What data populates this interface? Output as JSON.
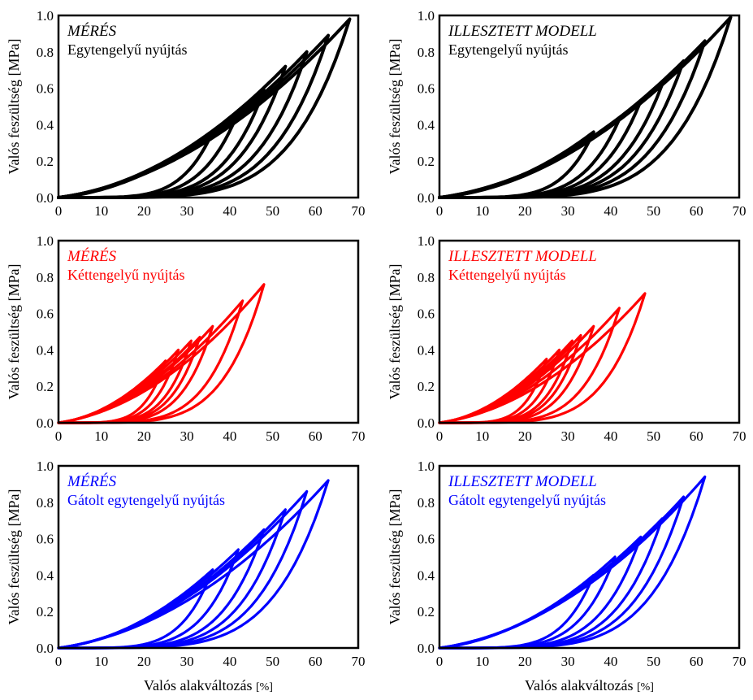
{
  "chart_data": [
    {
      "type": "line",
      "title": "MÉRÉS",
      "subtitle": "Egytengelyű nyújtás",
      "color": "#000000",
      "ylabel": "Valós feszültség [MPa]",
      "xlabel": "",
      "xlim": [
        0,
        70
      ],
      "ylim": [
        0,
        1.0
      ],
      "xticks": [
        "0",
        "10",
        "20",
        "30",
        "40",
        "50",
        "60",
        "70"
      ],
      "yticks": [
        "0.0",
        "0.2",
        "0.4",
        "0.6",
        "0.8",
        "1.0"
      ],
      "grid": false,
      "loops": [
        {
          "x_max": 36,
          "y_max": 0.36
        },
        {
          "x_max": 42,
          "y_max": 0.47
        },
        {
          "x_max": 48,
          "y_max": 0.59
        },
        {
          "x_max": 53,
          "y_max": 0.72
        },
        {
          "x_max": 58,
          "y_max": 0.8
        },
        {
          "x_max": 63,
          "y_max": 0.89
        },
        {
          "x_max": 68,
          "y_max": 0.98
        }
      ]
    },
    {
      "type": "line",
      "title": "ILLESZTETT MODELL",
      "subtitle": "Egytengelyű nyújtás",
      "color": "#000000",
      "ylabel": "Valós feszültség [MPa]",
      "xlabel": "",
      "xlim": [
        0,
        70
      ],
      "ylim": [
        0,
        1.0
      ],
      "xticks": [
        "0",
        "10",
        "20",
        "30",
        "40",
        "50",
        "60",
        "70"
      ],
      "yticks": [
        "0.0",
        "0.2",
        "0.4",
        "0.6",
        "0.8",
        "1.0"
      ],
      "grid": false,
      "loops": [
        {
          "x_max": 36,
          "y_max": 0.36
        },
        {
          "x_max": 42,
          "y_max": 0.43
        },
        {
          "x_max": 47,
          "y_max": 0.53
        },
        {
          "x_max": 52,
          "y_max": 0.62
        },
        {
          "x_max": 57,
          "y_max": 0.75
        },
        {
          "x_max": 62,
          "y_max": 0.86
        },
        {
          "x_max": 68,
          "y_max": 0.99
        }
      ]
    },
    {
      "type": "line",
      "title": "MÉRÉS",
      "subtitle": "Kéttengelyű nyújtás",
      "color": "#ff0000",
      "ylabel": "Valós feszültség [MPa]",
      "xlabel": "",
      "xlim": [
        0,
        70
      ],
      "ylim": [
        0,
        1.0
      ],
      "xticks": [
        "0",
        "10",
        "20",
        "30",
        "40",
        "50",
        "60",
        "70"
      ],
      "yticks": [
        "0.0",
        "0.2",
        "0.4",
        "0.6",
        "0.8",
        "1.0"
      ],
      "grid": false,
      "loops": [
        {
          "x_max": 25,
          "y_max": 0.34
        },
        {
          "x_max": 28,
          "y_max": 0.4
        },
        {
          "x_max": 31,
          "y_max": 0.45
        },
        {
          "x_max": 33,
          "y_max": 0.47
        },
        {
          "x_max": 36,
          "y_max": 0.53
        },
        {
          "x_max": 43,
          "y_max": 0.67
        },
        {
          "x_max": 48,
          "y_max": 0.76
        }
      ]
    },
    {
      "type": "line",
      "title": "ILLESZTETT MODELL",
      "subtitle": "Kéttengelyű nyújtás",
      "color": "#ff0000",
      "ylabel": "Valós feszültség [MPa]",
      "xlabel": "",
      "xlim": [
        0,
        70
      ],
      "ylim": [
        0,
        1.0
      ],
      "xticks": [
        "0",
        "10",
        "20",
        "30",
        "40",
        "50",
        "60",
        "70"
      ],
      "yticks": [
        "0.0",
        "0.2",
        "0.4",
        "0.6",
        "0.8",
        "1.0"
      ],
      "grid": false,
      "loops": [
        {
          "x_max": 25,
          "y_max": 0.35
        },
        {
          "x_max": 28,
          "y_max": 0.4
        },
        {
          "x_max": 31,
          "y_max": 0.45
        },
        {
          "x_max": 33,
          "y_max": 0.48
        },
        {
          "x_max": 36,
          "y_max": 0.53
        },
        {
          "x_max": 42,
          "y_max": 0.63
        },
        {
          "x_max": 48,
          "y_max": 0.71
        }
      ]
    },
    {
      "type": "line",
      "title": "MÉRÉS",
      "subtitle": "Gátolt egytengelyű nyújtás",
      "color": "#0000ff",
      "ylabel": "Valós feszültség [MPa]",
      "xlabel": "Valós alakváltozás [%]",
      "xlim": [
        0,
        70
      ],
      "ylim": [
        0,
        1.0
      ],
      "xticks": [
        "0",
        "10",
        "20",
        "30",
        "40",
        "50",
        "60",
        "70"
      ],
      "yticks": [
        "0.0",
        "0.2",
        "0.4",
        "0.6",
        "0.8",
        "1.0"
      ],
      "grid": false,
      "loops": [
        {
          "x_max": 36,
          "y_max": 0.43
        },
        {
          "x_max": 42,
          "y_max": 0.54
        },
        {
          "x_max": 48,
          "y_max": 0.65
        },
        {
          "x_max": 53,
          "y_max": 0.76
        },
        {
          "x_max": 58,
          "y_max": 0.86
        },
        {
          "x_max": 63,
          "y_max": 0.92
        }
      ]
    },
    {
      "type": "line",
      "title": "ILLESZTETT MODELL",
      "subtitle": "Gátolt egytengelyű nyújtás",
      "color": "#0000ff",
      "ylabel": "Valós feszültség [MPa]",
      "xlabel": "Valós alakváltozás [%]",
      "xlim": [
        0,
        70
      ],
      "ylim": [
        0,
        1.0
      ],
      "xticks": [
        "0",
        "10",
        "20",
        "30",
        "40",
        "50",
        "60",
        "70"
      ],
      "yticks": [
        "0.0",
        "0.2",
        "0.4",
        "0.6",
        "0.8",
        "1.0"
      ],
      "grid": false,
      "loops": [
        {
          "x_max": 36,
          "y_max": 0.4
        },
        {
          "x_max": 41,
          "y_max": 0.5
        },
        {
          "x_max": 47,
          "y_max": 0.61
        },
        {
          "x_max": 52,
          "y_max": 0.71
        },
        {
          "x_max": 57,
          "y_max": 0.83
        },
        {
          "x_max": 62,
          "y_max": 0.94
        }
      ]
    }
  ]
}
